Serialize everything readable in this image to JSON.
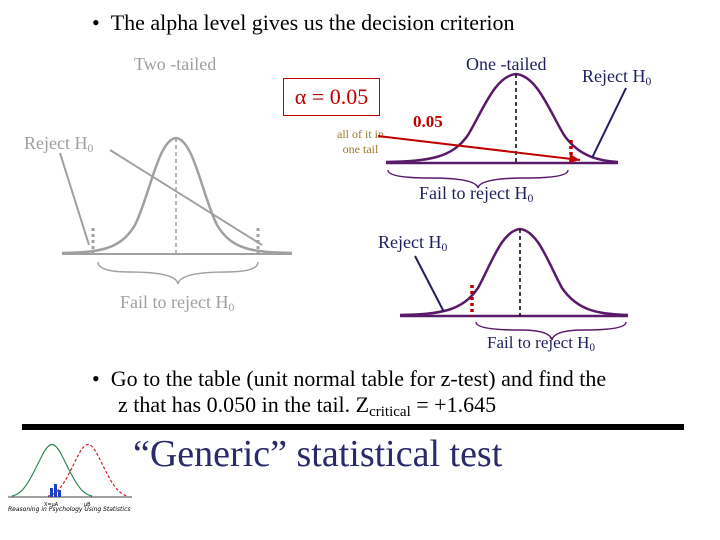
{
  "bullets": {
    "top": "The alpha level gives us the decision criterion",
    "second_line1": "Go to the table (unit normal table for z-test) and find the",
    "second_line2_prefix": "z that has 0.050 in the tail.  Z",
    "second_line2_sub": "critical",
    "second_line2_suffix": " = +1.645"
  },
  "labels": {
    "two_tailed": "Two -tailed",
    "one_tailed": "One -tailed",
    "alpha": "α = 0.05",
    "all_of_it_line1": "all of it in",
    "all_of_it_line2": "one tail",
    "tail_value": "0.05",
    "reject_h": "Reject H",
    "reject_sub": "0",
    "fail_to_reject_h": "Fail to reject H",
    "fail_sub": "0"
  },
  "footer": {
    "title": "“Generic” statistical test",
    "credit": "Reasoning in Psychology Using Statistics",
    "thumb_label_a": "X=μA",
    "thumb_label_b": "μB"
  },
  "colors": {
    "gray": "#a0a0a0",
    "navy": "#1f1f5e",
    "purple": "#5a1a6a",
    "red": "#c00000",
    "olive": "#9a7a2a"
  }
}
